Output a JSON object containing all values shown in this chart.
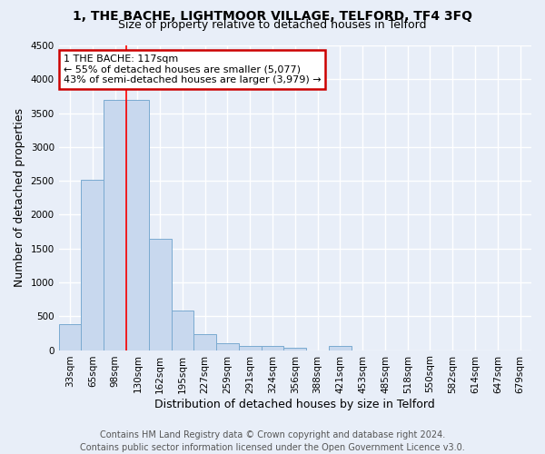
{
  "title_line1": "1, THE BACHE, LIGHTMOOR VILLAGE, TELFORD, TF4 3FQ",
  "title_line2": "Size of property relative to detached houses in Telford",
  "xlabel": "Distribution of detached houses by size in Telford",
  "ylabel": "Number of detached properties",
  "bar_color": "#c8d8ee",
  "bar_edge_color": "#7aaad0",
  "categories": [
    "33sqm",
    "65sqm",
    "98sqm",
    "130sqm",
    "162sqm",
    "195sqm",
    "227sqm",
    "259sqm",
    "291sqm",
    "324sqm",
    "356sqm",
    "388sqm",
    "421sqm",
    "453sqm",
    "485sqm",
    "518sqm",
    "550sqm",
    "582sqm",
    "614sqm",
    "647sqm",
    "679sqm"
  ],
  "values": [
    380,
    2520,
    3700,
    3700,
    1640,
    590,
    240,
    105,
    60,
    55,
    40,
    0,
    55,
    0,
    0,
    0,
    0,
    0,
    0,
    0,
    0
  ],
  "ylim": [
    0,
    4500
  ],
  "yticks": [
    0,
    500,
    1000,
    1500,
    2000,
    2500,
    3000,
    3500,
    4000,
    4500
  ],
  "red_line_x": 2.5,
  "annotation_title": "1 THE BACHE: 117sqm",
  "annotation_line1": "← 55% of detached houses are smaller (5,077)",
  "annotation_line2": "43% of semi-detached houses are larger (3,979) →",
  "annotation_box_color": "white",
  "annotation_box_edge_color": "#cc0000",
  "footer_line1": "Contains HM Land Registry data © Crown copyright and database right 2024.",
  "footer_line2": "Contains public sector information licensed under the Open Government Licence v3.0.",
  "background_color": "#e8eef8",
  "grid_color": "white",
  "title_fontsize": 10,
  "subtitle_fontsize": 9,
  "axis_label_fontsize": 9,
  "tick_fontsize": 7.5,
  "annotation_fontsize": 8,
  "footer_fontsize": 7
}
